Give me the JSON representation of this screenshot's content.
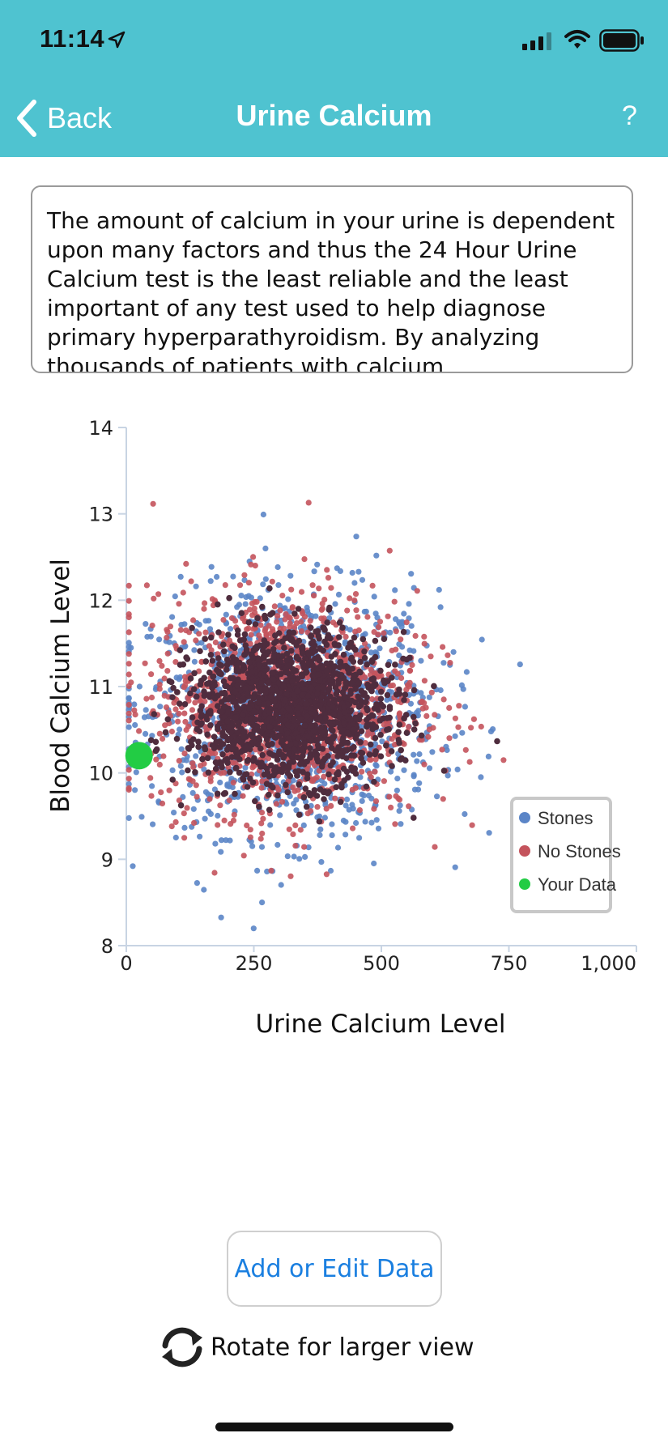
{
  "status_bar": {
    "time": "11:14"
  },
  "nav": {
    "back_label": "Back",
    "title": "Urine Calcium",
    "help_label": "?"
  },
  "info": {
    "text": "The amount of calcium in your urine is dependent upon many factors and thus the 24 Hour Urine Calcium test is the least reliable and the least important of any test used to help diagnose primary hyperparathyroidism. By analyzing thousands of patients with calcium"
  },
  "chart_data": {
    "type": "scatter",
    "xlabel": "Urine Calcium Level",
    "ylabel": "Blood Calcium Level",
    "xlim": [
      0,
      1000
    ],
    "ylim": [
      8,
      14
    ],
    "x_ticks": [
      "0",
      "250",
      "500",
      "750",
      "1,000"
    ],
    "y_ticks": [
      "8",
      "9",
      "10",
      "11",
      "12",
      "13",
      "14"
    ],
    "legend_position": "bottom-right",
    "series": [
      {
        "name": "Stones",
        "color": "#5b85c7",
        "distribution": {
          "x_mean": 330,
          "x_sd": 140,
          "y_mean": 10.7,
          "y_sd": 0.7,
          "count": 1300
        }
      },
      {
        "name": "No Stones",
        "color": "#c4535c",
        "distribution": {
          "x_mean": 310,
          "x_sd": 130,
          "y_mean": 10.8,
          "y_sd": 0.65,
          "count": 1300
        }
      },
      {
        "name": "Your Data",
        "color": "#22cc44",
        "points": [
          {
            "x": 25,
            "y": 10.2
          }
        ]
      }
    ],
    "overlap_color": "#4f2d3e"
  },
  "actions": {
    "add_edit_label": "Add or Edit Data",
    "rotate_label": "Rotate for larger view"
  },
  "icons": {
    "back": "chevron-left-icon",
    "rotate": "rotate-arrows-icon",
    "location": "location-arrow-icon",
    "signal": "signal-icon",
    "wifi": "wifi-icon",
    "battery": "battery-icon"
  }
}
